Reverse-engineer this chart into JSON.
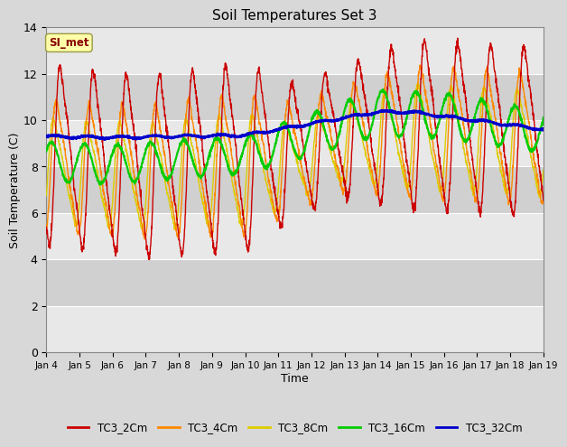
{
  "title": "Soil Temperatures Set 3",
  "xlabel": "Time",
  "ylabel": "Soil Temperature (C)",
  "ylim": [
    0,
    14
  ],
  "yticks": [
    0,
    2,
    4,
    6,
    8,
    10,
    12,
    14
  ],
  "annotation": "SI_met",
  "fig_bg_color": "#d8d8d8",
  "plot_bg_color": "#d0d0d0",
  "series_2cm": {
    "color": "#cc0000",
    "lw": 1.0
  },
  "series_4cm": {
    "color": "#ff8800",
    "lw": 1.0
  },
  "series_8cm": {
    "color": "#ddcc00",
    "lw": 1.0
  },
  "series_16cm": {
    "color": "#00cc00",
    "lw": 1.5
  },
  "series_32cm": {
    "color": "#0000cc",
    "lw": 1.8
  },
  "xtick_labels": [
    "Jan 4",
    "Jan 5",
    "Jan 6",
    "Jan 7",
    "Jan 8",
    "Jan 9",
    "Jan 10",
    "Jan 11",
    "Jan 12",
    "Jan 13",
    "Jan 14",
    "Jan 15",
    "Jan 16",
    "Jan 17",
    "Jan 18",
    "Jan 19"
  ],
  "grid_color": "#ffffff",
  "band_color_light": "#e8e8e8",
  "band_color_dark": "#d0d0d0",
  "legend_colors": [
    "#cc0000",
    "#ff8800",
    "#ddcc00",
    "#00cc00",
    "#0000cc"
  ],
  "legend_labels": [
    "TC3_2Cm",
    "TC3_4Cm",
    "TC3_8Cm",
    "TC3_16Cm",
    "TC3_32Cm"
  ]
}
